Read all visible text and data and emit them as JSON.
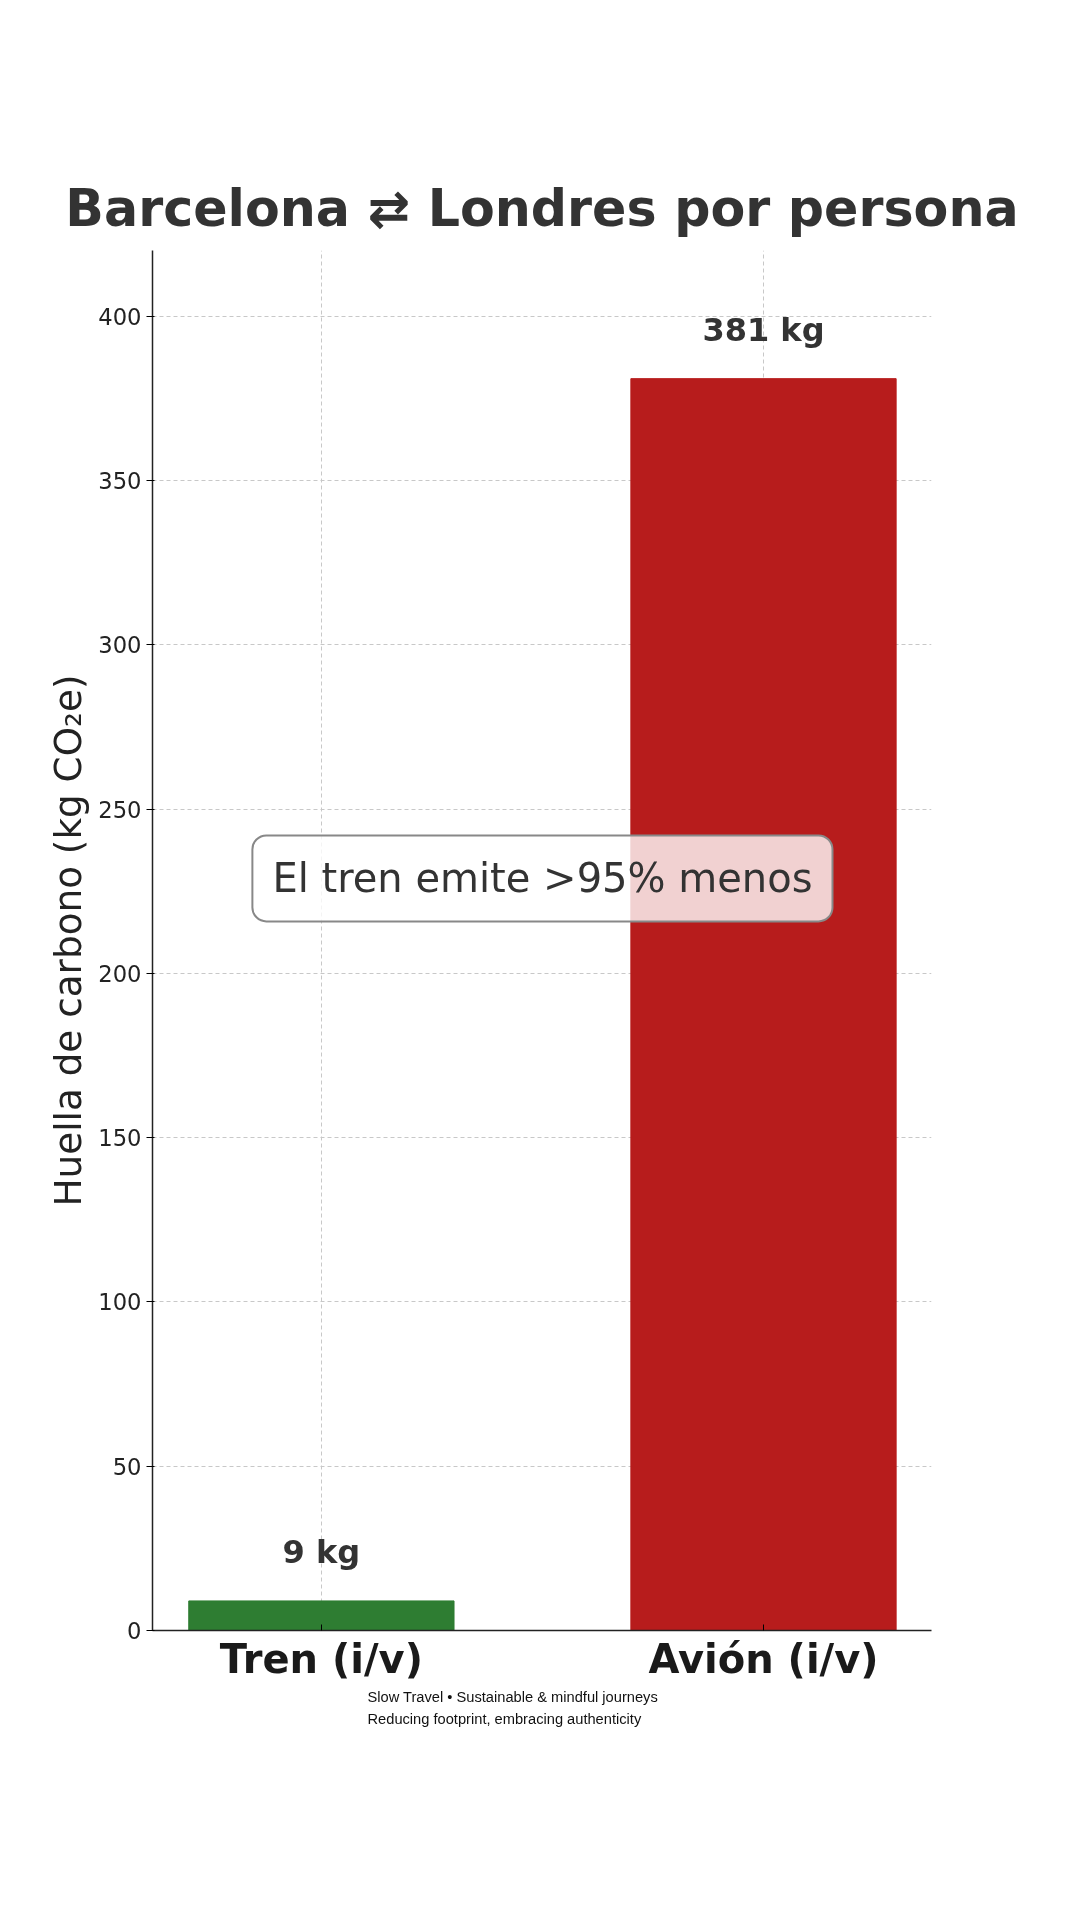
{
  "chart_data": {
    "type": "bar",
    "title": "Barcelona ⇄ Londres por persona",
    "ylabel": "Huella de carbono (kg CO₂e)",
    "categories": [
      "Tren (i/v)",
      "Avión (i/v)"
    ],
    "values": [
      9,
      381
    ],
    "colors": [
      "#2e7d32",
      "#b71c1c"
    ],
    "value_labels": [
      "9 kg",
      "381 kg"
    ],
    "ylim": [
      0,
      420
    ],
    "yticks": [
      0,
      50,
      100,
      150,
      200,
      250,
      300,
      350,
      400
    ],
    "grid": true,
    "annotations": [
      "El tren emite >95% menos",
      "Slow Travel • Sustainable & mindful journeys",
      "Reducing footprint, embracing authenticity"
    ]
  }
}
